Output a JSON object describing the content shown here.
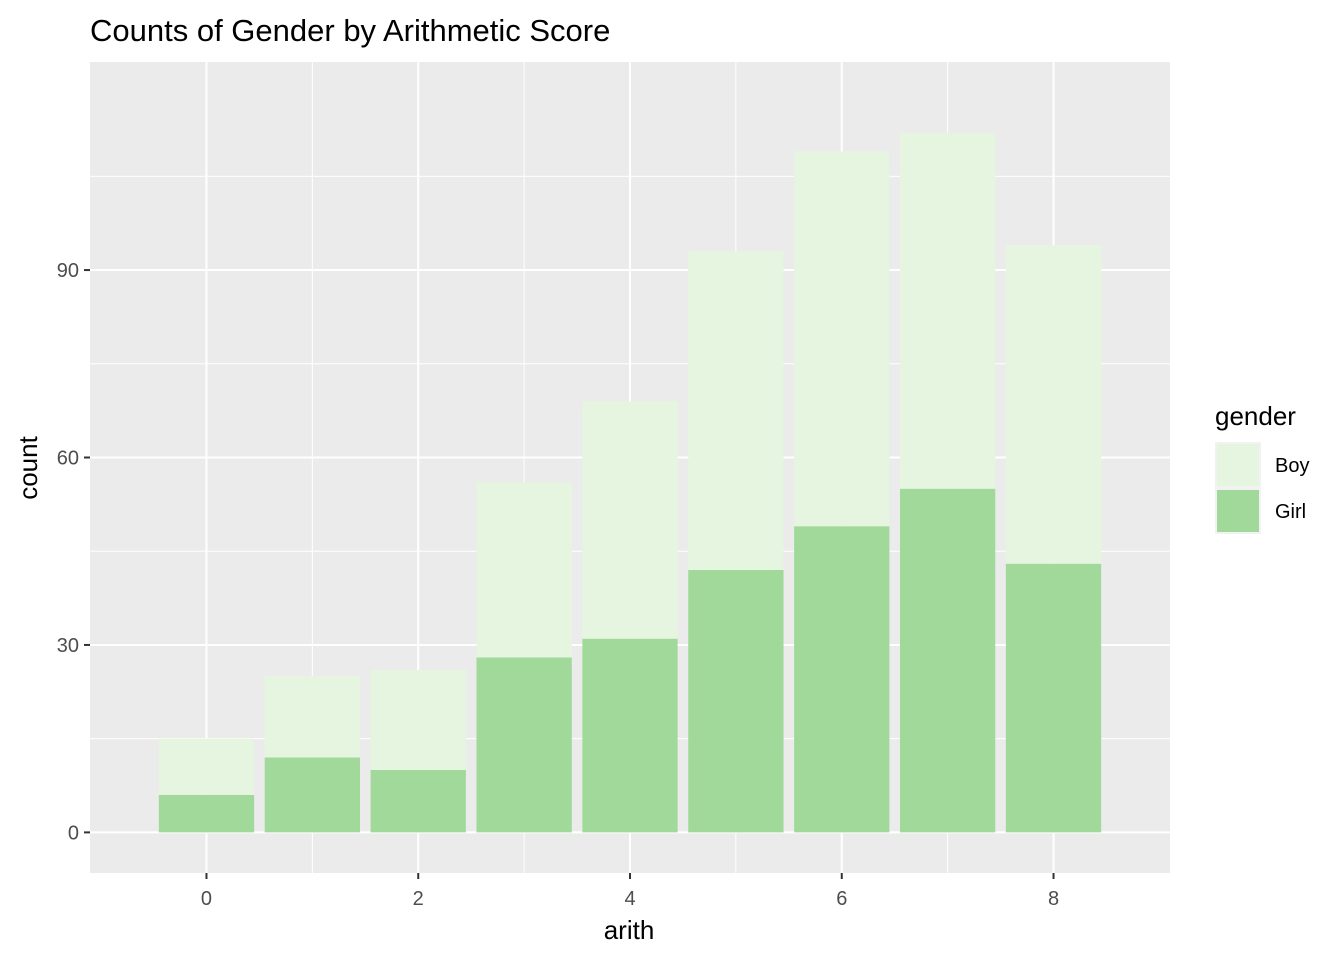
{
  "chart_data": {
    "type": "bar",
    "stacked": true,
    "title": "Counts of Gender by Arithmetic Score",
    "xlabel": "arith",
    "ylabel": "count",
    "categories": [
      0,
      1,
      2,
      3,
      4,
      5,
      6,
      7,
      8
    ],
    "x_ticks": [
      "0",
      "2",
      "4",
      "6",
      "8"
    ],
    "y_ticks": [
      "0",
      "30",
      "60",
      "90"
    ],
    "xlim": [
      -0.5,
      8.5
    ],
    "ylim": [
      0,
      117
    ],
    "grid": true,
    "legend": {
      "title": "gender",
      "position": "right"
    },
    "series": [
      {
        "name": "Girl",
        "color": "#a1d99b",
        "values": [
          6,
          12,
          10,
          28,
          31,
          42,
          49,
          55,
          43
        ]
      },
      {
        "name": "Boy",
        "color": "#e5f5e0",
        "values": [
          9,
          13,
          16,
          28,
          38,
          51,
          60,
          57,
          51
        ]
      }
    ],
    "panel_background": "#ebebeb",
    "grid_color": "#ffffff"
  }
}
